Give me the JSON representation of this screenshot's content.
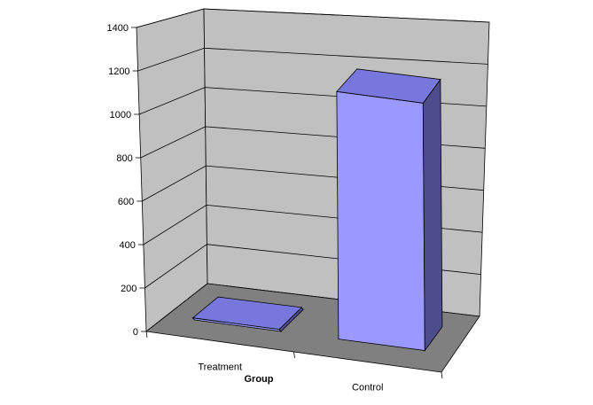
{
  "chart_data": {
    "type": "bar",
    "categories": [
      "Treatment",
      "Control"
    ],
    "values": [
      10,
      1200
    ],
    "xlabel": "Group",
    "ylabel": "",
    "ylim": [
      0,
      1400
    ],
    "yticks": [
      0,
      200,
      400,
      600,
      800,
      1000,
      1200,
      1400
    ],
    "grid": true,
    "three_d": true,
    "colors": {
      "bar_front": "#9999ff",
      "bar_top": "#7777dd",
      "bar_side": "#4d4d8c",
      "wall": "#c0c0c0",
      "floor": "#808080",
      "gridline": "#000000"
    }
  }
}
